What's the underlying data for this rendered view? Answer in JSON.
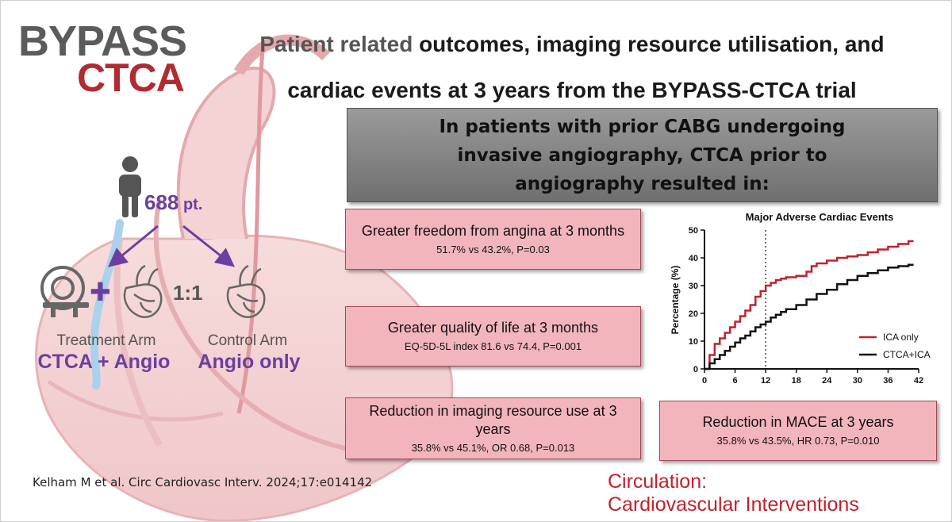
{
  "logo": {
    "line1": "BYPASS",
    "line2": "CTCA"
  },
  "title": {
    "dim_part": "Patient related",
    "rest_line1": " outcomes, imaging resource utilisation, and",
    "line2": "cardiac events at 3 years from the BYPASS-CTCA trial"
  },
  "banner": "In patients with prior CABG undergoing invasive angiography, CTCA prior to angiography resulted in:",
  "design": {
    "patients_number": "688",
    "patients_unit": " pt.",
    "ratio": "1:1",
    "treatment_label": "Treatment Arm",
    "treatment_name": "CTCA + Angio",
    "control_label": "Control Arm",
    "control_name": "Angio only",
    "plus": "✚"
  },
  "outcomes": [
    {
      "head": "Greater freedom from angina at 3 months",
      "sub": "51.7% vs 43.2%, P=0.03"
    },
    {
      "head": "Greater quality of life at 3 months",
      "sub": "EQ-5D-5L index 81.6 vs 74.4, P=0.001"
    },
    {
      "head": "Reduction in imaging resource use at 3 years",
      "sub": "35.8% vs 45.1%, OR 0.68, P=0.013"
    },
    {
      "head": "Reduction in MACE at 3 years",
      "sub": "35.8% vs 43.5%, HR 0.73, P=0.010"
    }
  ],
  "citation": "Kelham M et al. Circ Cardiovasc Interv. 2024;17:e014142",
  "journal": {
    "line1": "Circulation:",
    "line2": "Cardiovascular Interventions"
  },
  "colors": {
    "accent_purple": "#6b3fa0",
    "brand_red": "#b22a33",
    "box_pink": "#f3b5bc",
    "ica_red": "#c0222b",
    "ctca_black": "#111111"
  },
  "chart_data": {
    "type": "line",
    "title": "Major Adverse Cardiac Events",
    "xlabel": "",
    "ylabel": "Percentage (%)",
    "xlim": [
      0,
      42
    ],
    "ylim": [
      0,
      50
    ],
    "xticks": [
      0,
      6,
      12,
      18,
      24,
      30,
      36,
      42
    ],
    "yticks": [
      0,
      10,
      20,
      30,
      40,
      50
    ],
    "reference_line_x": 12,
    "legend_position": "bottom-right",
    "series": [
      {
        "name": "ICA only",
        "color": "#c0222b",
        "x": [
          0,
          1,
          2,
          3,
          4,
          5,
          6,
          7,
          8,
          9,
          10,
          11,
          12,
          13,
          14,
          15,
          16,
          18,
          20,
          21,
          22,
          24,
          26,
          28,
          30,
          32,
          34,
          36,
          38,
          40,
          41
        ],
        "y": [
          0,
          5,
          9,
          11,
          13,
          15,
          17,
          19,
          21,
          23,
          26,
          28,
          30,
          31,
          32,
          32.5,
          33,
          33.5,
          35,
          37,
          38,
          39,
          40,
          40.5,
          41,
          42,
          43,
          44,
          45,
          46,
          46
        ]
      },
      {
        "name": "CTCA+ICA",
        "color": "#111111",
        "x": [
          0,
          1,
          2,
          3,
          4,
          5,
          6,
          7,
          8,
          9,
          10,
          11,
          12,
          13,
          14,
          15,
          16,
          18,
          20,
          22,
          24,
          26,
          28,
          30,
          32,
          34,
          36,
          38,
          40,
          41
        ],
        "y": [
          0,
          2,
          3.5,
          5,
          6.5,
          8,
          9.5,
          11,
          12,
          13.5,
          15,
          16,
          17,
          18.5,
          19.5,
          20.5,
          21.5,
          23,
          25,
          27,
          28.5,
          30.5,
          32,
          33.5,
          34.5,
          35.5,
          36.5,
          37,
          37.5,
          37.5
        ]
      }
    ]
  }
}
